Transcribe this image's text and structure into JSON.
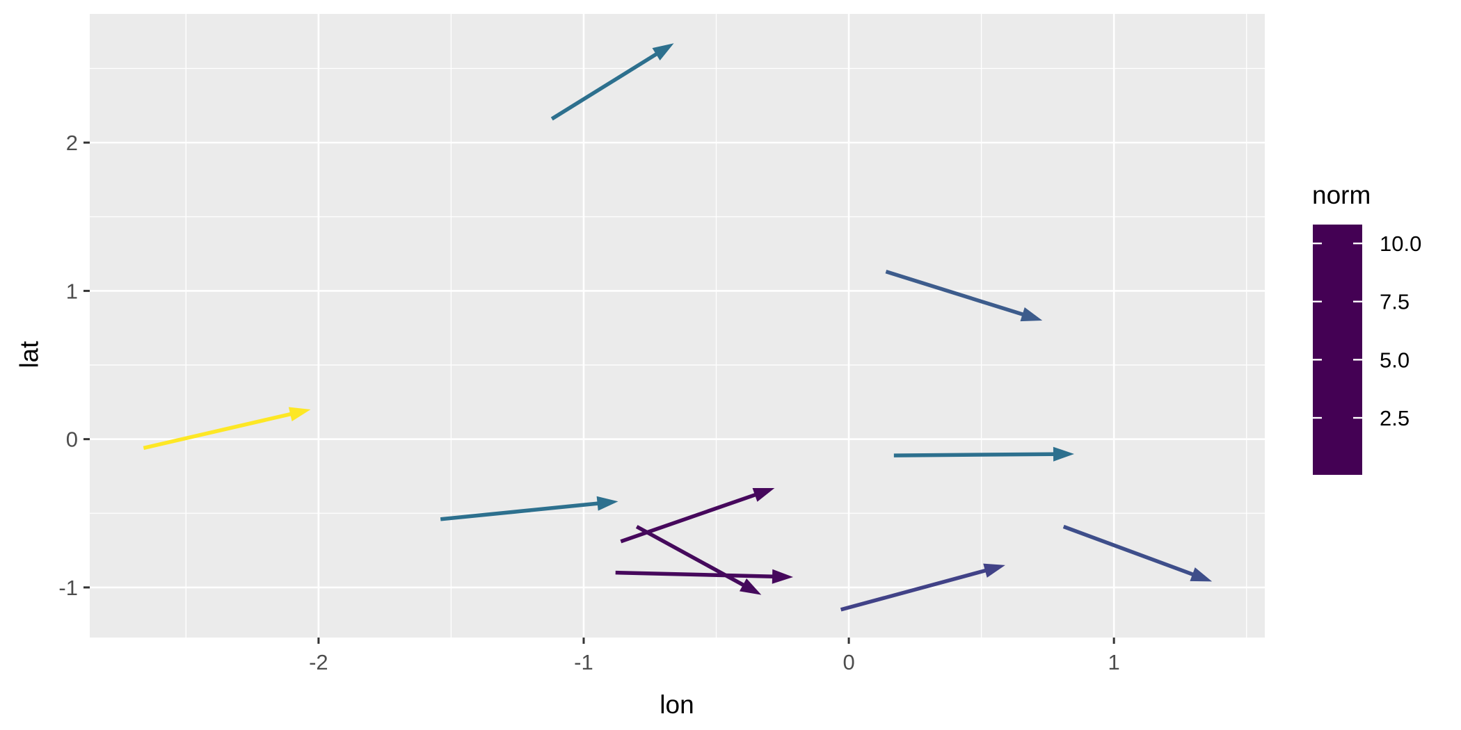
{
  "chart_data": {
    "type": "scatter",
    "subtype": "quiver-vector-field",
    "title": "",
    "xlabel": "lon",
    "ylabel": "lat",
    "xlim": [
      -2.863,
      1.569
    ],
    "ylim": [
      -1.338,
      2.868
    ],
    "xticks_major": [
      -2,
      -1,
      0,
      1
    ],
    "xticks_minor": [
      -2.5,
      -1.5,
      -0.5,
      0.5,
      1.5
    ],
    "yticks_major": [
      -1,
      0,
      1,
      2
    ],
    "yticks_minor": [
      -0.5,
      0.5,
      1.5,
      2.5
    ],
    "grid": true,
    "panel_background": "#EBEBEB",
    "grid_color": "#FFFFFF",
    "tick_mark_color": "#333333",
    "tick_label_color": "#4D4D4D",
    "arrows": [
      {
        "lon": -1.12,
        "lat": 2.16,
        "lon_end": -0.66,
        "lat_end": 2.67,
        "norm": 4.0,
        "color": "#2D708E"
      },
      {
        "lon": 0.14,
        "lat": 1.13,
        "lon_end": 0.73,
        "lat_end": 0.8,
        "norm": 3.0,
        "color": "#3D5C8C"
      },
      {
        "lon": -2.66,
        "lat": -0.06,
        "lon_end": -2.03,
        "lat_end": 0.2,
        "norm": 10.8,
        "color": "#FDE725"
      },
      {
        "lon": -1.54,
        "lat": -0.54,
        "lon_end": -0.87,
        "lat_end": -0.42,
        "norm": 4.0,
        "color": "#2D708E"
      },
      {
        "lon": -0.86,
        "lat": -0.69,
        "lon_end": -0.28,
        "lat_end": -0.33,
        "norm": 0.6,
        "color": "#46085C"
      },
      {
        "lon": -0.8,
        "lat": -0.59,
        "lon_end": -0.33,
        "lat_end": -1.05,
        "norm": 0.3,
        "color": "#450A5C"
      },
      {
        "lon": -0.88,
        "lat": -0.9,
        "lon_end": -0.21,
        "lat_end": -0.93,
        "norm": 0.5,
        "color": "#46085C"
      },
      {
        "lon": 0.17,
        "lat": -0.11,
        "lon_end": 0.85,
        "lat_end": -0.1,
        "norm": 4.0,
        "color": "#2D708E"
      },
      {
        "lon": -0.03,
        "lat": -1.15,
        "lon_end": 0.59,
        "lat_end": -0.85,
        "norm": 1.9,
        "color": "#414287"
      },
      {
        "lon": 0.81,
        "lat": -0.59,
        "lon_end": 1.37,
        "lat_end": -0.96,
        "norm": 2.3,
        "color": "#3E4E8A"
      }
    ],
    "legend": {
      "title": "norm",
      "position": "right",
      "bar_value_range": [
        0.05,
        10.81
      ],
      "tick_values": [
        10.0,
        7.5,
        5.0,
        2.5
      ],
      "tick_labels": [
        "10.0",
        "7.5",
        "5.0",
        "2.5"
      ],
      "label_color": "#000000",
      "colormap": "viridis",
      "viridis_stops_bottom_to_top": [
        {
          "f": 0.0,
          "color": "#440154"
        },
        {
          "f": 0.125,
          "color": "#472D7B"
        },
        {
          "f": 0.25,
          "color": "#3B528B"
        },
        {
          "f": 0.375,
          "color": "#2C728E"
        },
        {
          "f": 0.5,
          "color": "#21918C"
        },
        {
          "f": 0.625,
          "color": "#28AE80"
        },
        {
          "f": 0.75,
          "color": "#5EC962"
        },
        {
          "f": 0.875,
          "color": "#ADDC30"
        },
        {
          "f": 1.0,
          "color": "#FDE725"
        }
      ]
    }
  }
}
